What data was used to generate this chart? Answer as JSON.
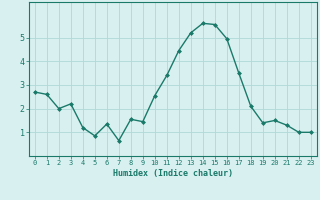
{
  "x": [
    0,
    1,
    2,
    3,
    4,
    5,
    6,
    7,
    8,
    9,
    10,
    11,
    12,
    13,
    14,
    15,
    16,
    17,
    18,
    19,
    20,
    21,
    22,
    23
  ],
  "y": [
    2.7,
    2.6,
    2.0,
    2.2,
    1.2,
    0.85,
    1.35,
    0.65,
    1.55,
    1.45,
    2.55,
    3.4,
    4.45,
    5.2,
    5.6,
    5.55,
    4.95,
    3.5,
    2.1,
    1.4,
    1.5,
    1.3,
    1.0,
    1.0
  ],
  "line_color": "#1a7a6a",
  "marker": "D",
  "marker_size": 2,
  "bg_color": "#d9f0f0",
  "grid_color": "#b0d8d8",
  "xlabel": "Humidex (Indice chaleur)",
  "xlabel_color": "#1a7a6a",
  "tick_color": "#1a7a6a",
  "spine_color": "#1a7a6a",
  "ylim": [
    0,
    6.5
  ],
  "xlim": [
    -0.5,
    23.5
  ],
  "yticks": [
    1,
    2,
    3,
    4,
    5
  ],
  "xticks": [
    0,
    1,
    2,
    3,
    4,
    5,
    6,
    7,
    8,
    9,
    10,
    11,
    12,
    13,
    14,
    15,
    16,
    17,
    18,
    19,
    20,
    21,
    22,
    23
  ],
  "tick_fontsize": 5,
  "xlabel_fontsize": 6,
  "linewidth": 1.0
}
